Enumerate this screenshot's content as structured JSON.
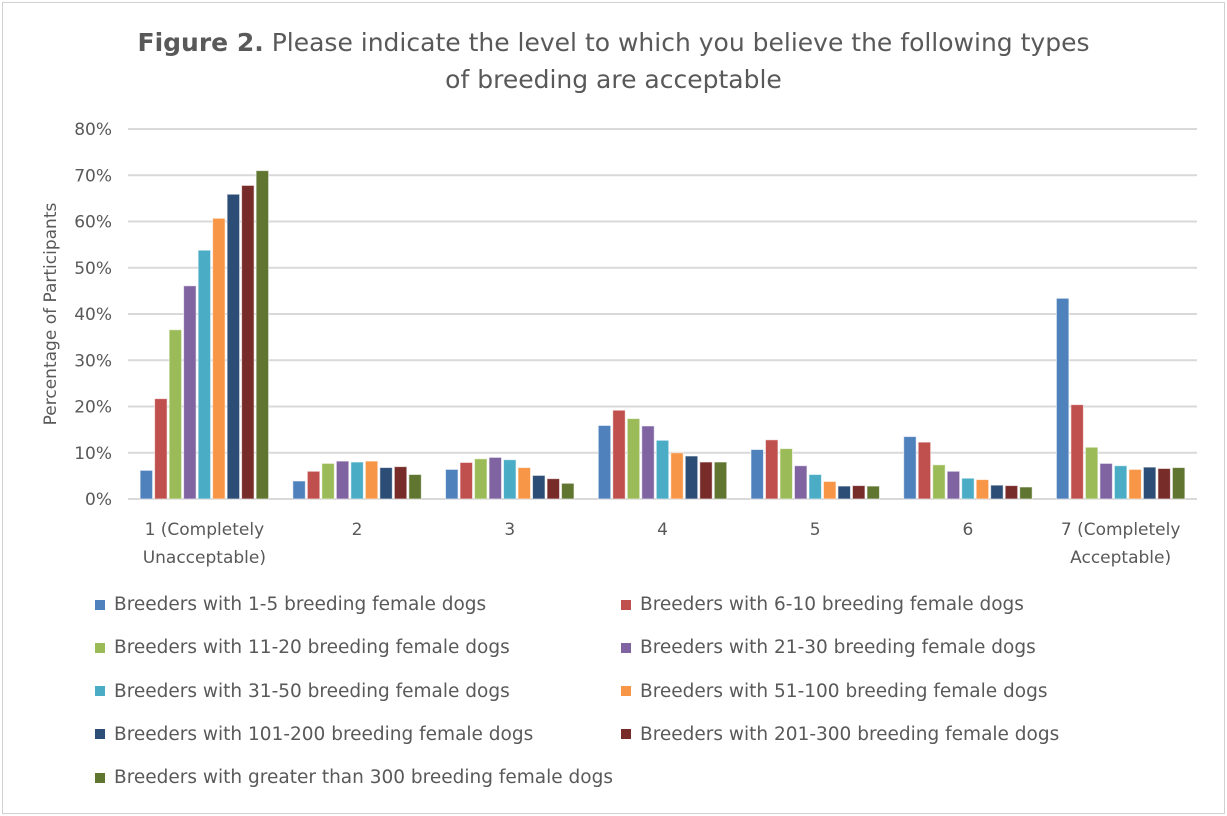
{
  "title": {
    "bold": "Figure 2.",
    "text": " Please indicate the level to which you believe the following types of breeding are acceptable"
  },
  "chart_data": {
    "type": "bar",
    "title": "Figure 2. Please indicate the level to which you believe the following types of breeding are acceptable",
    "xlabel": "",
    "ylabel": "Percentage of Participants",
    "ylim": [
      0,
      80
    ],
    "yticks": [
      "0%",
      "10%",
      "20%",
      "30%",
      "40%",
      "50%",
      "60%",
      "70%",
      "80%"
    ],
    "grid": true,
    "legend": "bottom",
    "categories": [
      [
        "1 (Completely",
        "Unacceptable)"
      ],
      [
        "2"
      ],
      [
        "3"
      ],
      [
        "4"
      ],
      [
        "5"
      ],
      [
        "6"
      ],
      [
        "7 (Completely",
        "Acceptable)"
      ]
    ],
    "series": [
      {
        "name": "Breeders with 1-5 breeding female dogs",
        "color": "#4f81bd",
        "values": [
          6.2,
          3.9,
          6.4,
          15.9,
          10.7,
          13.5,
          43.4
        ]
      },
      {
        "name": "Breeders with 6-10 breeding female dogs",
        "color": "#c0504d",
        "values": [
          21.7,
          6.0,
          7.9,
          19.2,
          12.8,
          12.3,
          20.4
        ]
      },
      {
        "name": "Breeders with 11-20 breeding female dogs",
        "color": "#9bbb59",
        "values": [
          36.6,
          7.7,
          8.7,
          17.4,
          10.9,
          7.4,
          11.2
        ]
      },
      {
        "name": "Breeders with 21-30 breeding female dogs",
        "color": "#8064a2",
        "values": [
          46.1,
          8.2,
          9.0,
          15.8,
          7.2,
          6.0,
          7.7
        ]
      },
      {
        "name": "Breeders with 31-50 breeding female dogs",
        "color": "#4bacc6",
        "values": [
          53.8,
          8.0,
          8.5,
          12.7,
          5.3,
          4.5,
          7.2
        ]
      },
      {
        "name": "Breeders with 51-100 breeding female dogs",
        "color": "#f79646",
        "values": [
          60.7,
          8.2,
          6.8,
          10.0,
          3.8,
          4.2,
          6.4
        ]
      },
      {
        "name": "Breeders with 101-200 breeding female dogs",
        "color": "#2c4d75",
        "values": [
          65.9,
          6.8,
          5.1,
          9.3,
          2.8,
          3.0,
          6.9
        ]
      },
      {
        "name": "Breeders with 201-300 breeding female dogs",
        "color": "#772c2a",
        "values": [
          67.8,
          7.0,
          4.4,
          8.0,
          2.9,
          2.9,
          6.6
        ]
      },
      {
        "name": "Breeders with greater than 300 breeding female dogs",
        "color": "#5f7530",
        "values": [
          71.0,
          5.3,
          3.4,
          8.0,
          2.8,
          2.6,
          6.8
        ]
      }
    ]
  }
}
